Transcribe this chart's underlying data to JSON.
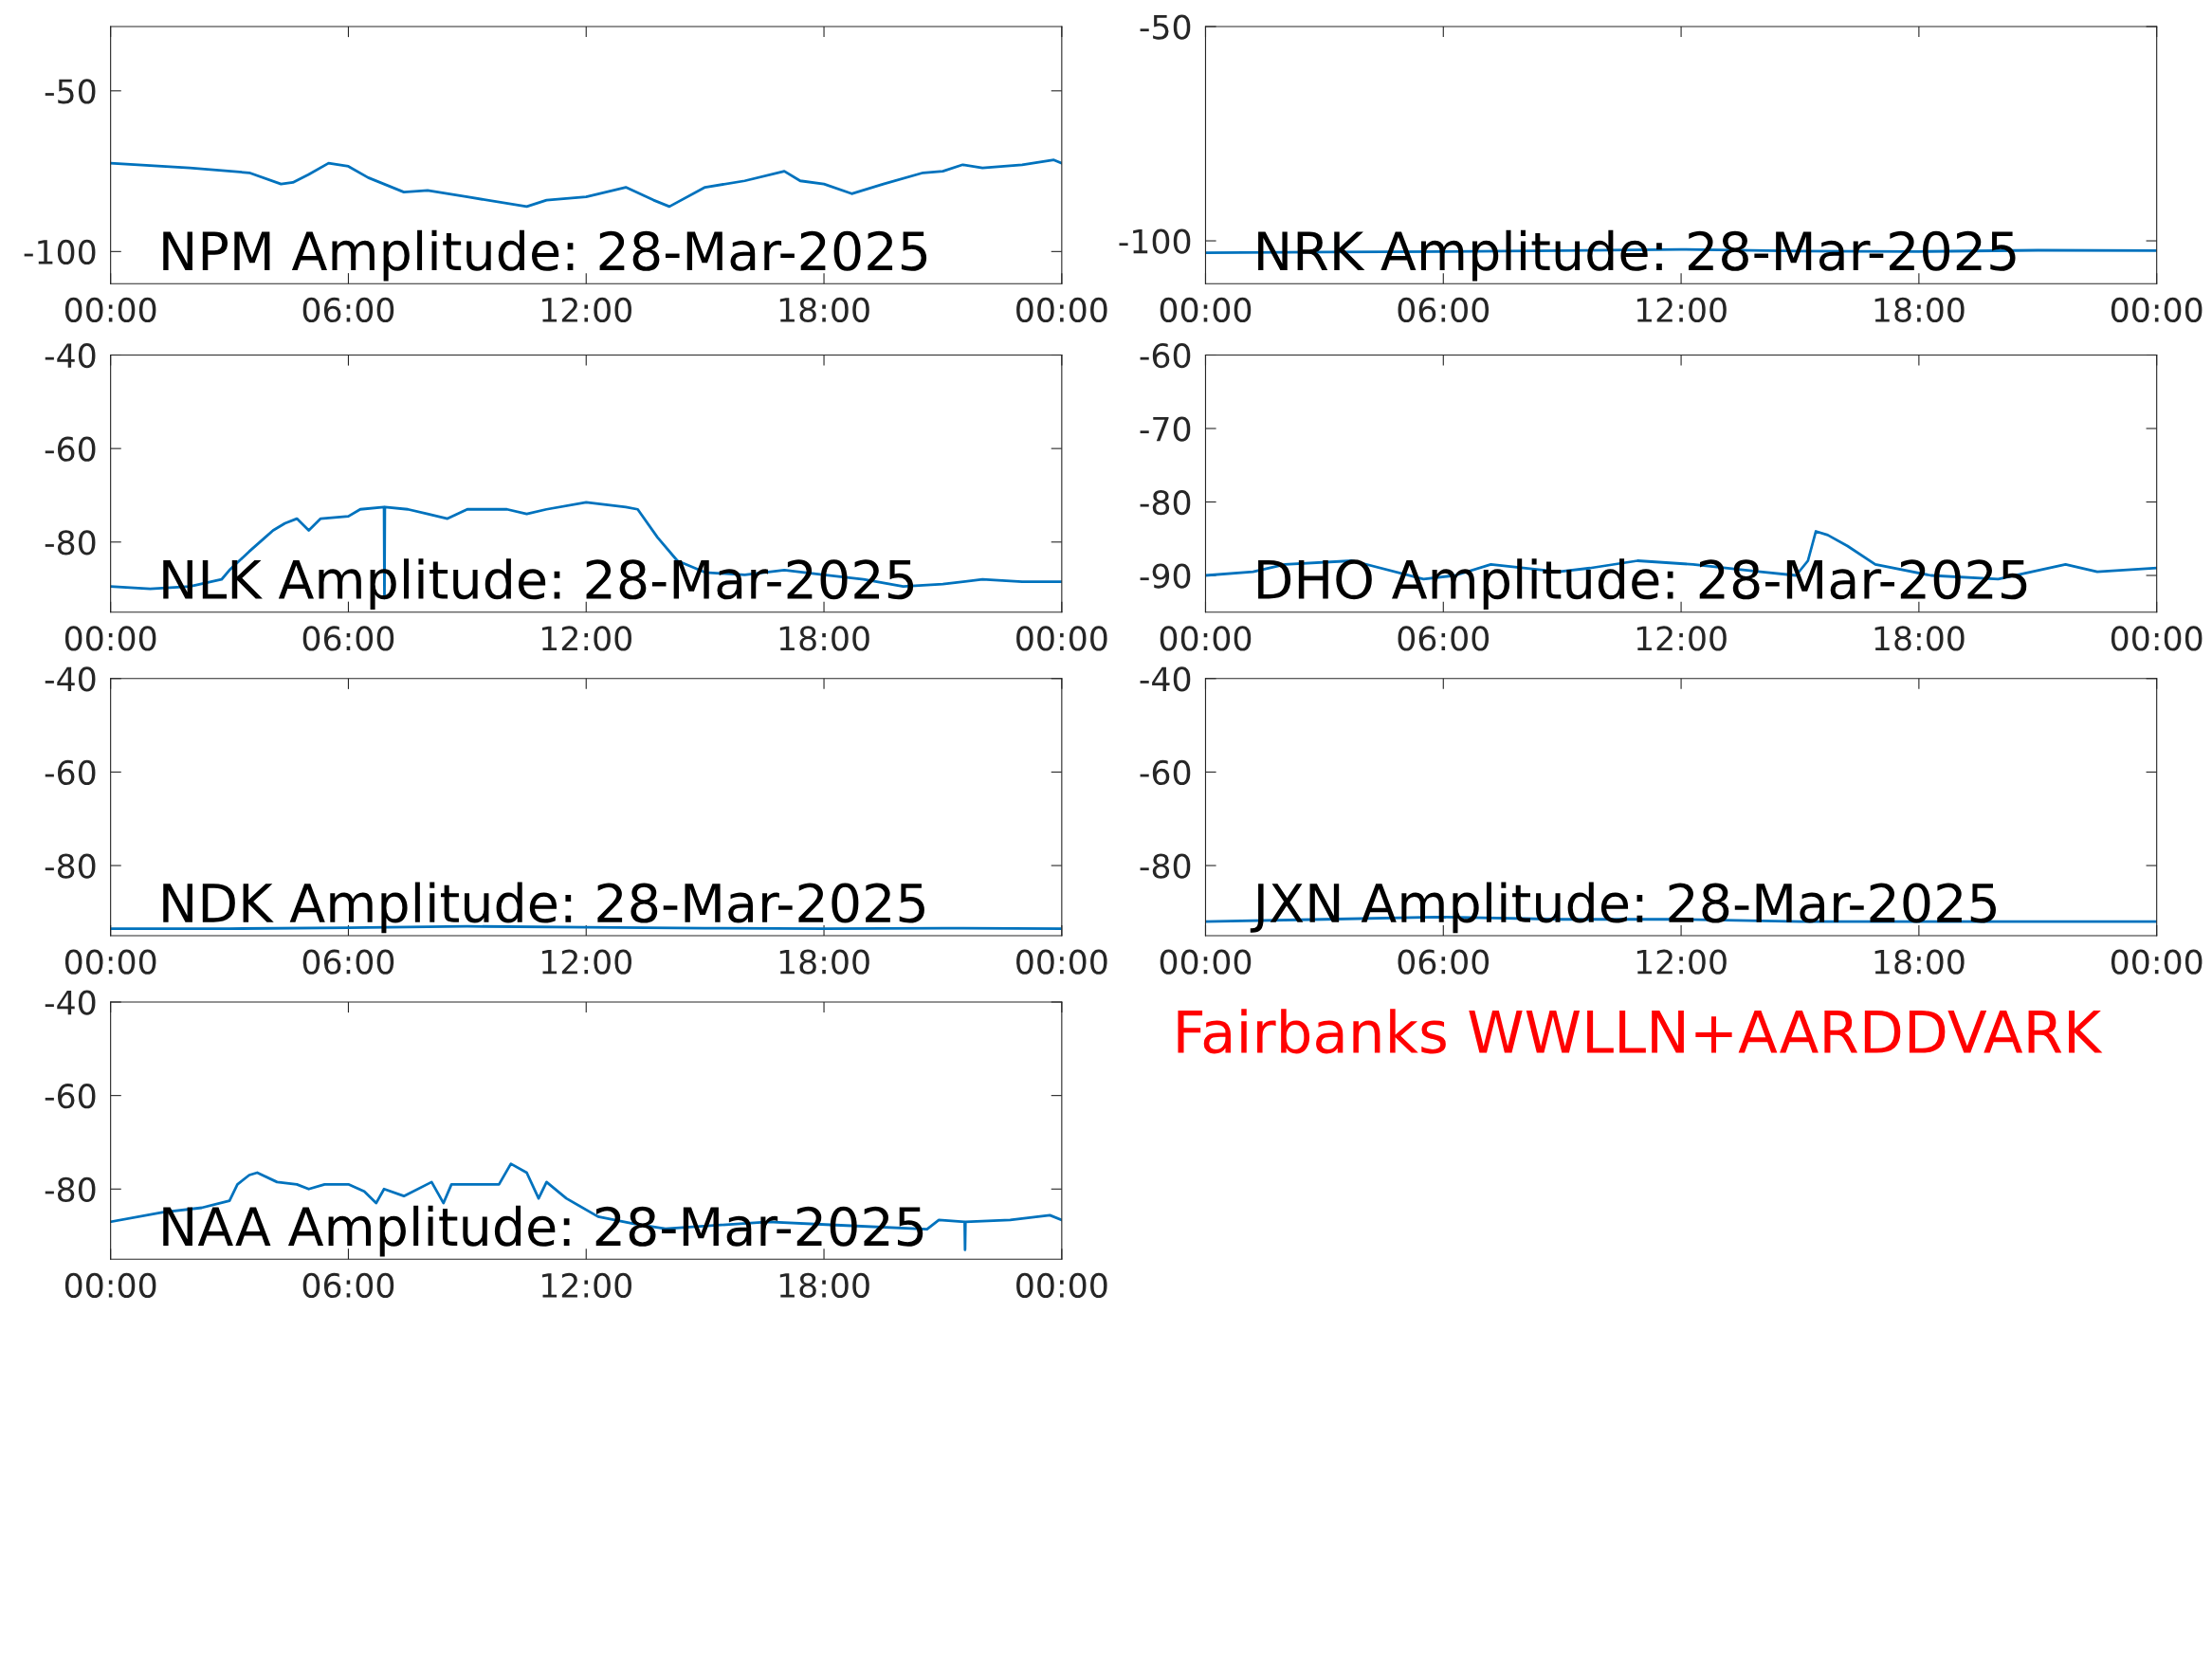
{
  "chart_data": [
    {
      "type": "line",
      "title": "NPM Amplitude: 28-Mar-2025",
      "ylim": [
        -110,
        -30
      ],
      "yticks": [
        -50,
        -100
      ],
      "xlim": [
        0,
        24
      ],
      "xticks": [
        {
          "value": 0,
          "label": "00:00"
        },
        {
          "value": 6,
          "label": "06:00"
        },
        {
          "value": 12,
          "label": "12:00"
        },
        {
          "value": 18,
          "label": "18:00"
        },
        {
          "value": 24,
          "label": "00:00"
        }
      ],
      "grid": false,
      "legend": false,
      "series": [
        {
          "color": "#0072bd",
          "x": [
            0,
            2,
            3.5,
            4.3,
            4.6,
            5,
            5.5,
            6,
            6.5,
            7.4,
            8,
            9,
            10.5,
            11,
            12,
            13,
            13.7,
            14.1,
            15,
            16,
            17,
            17.4,
            18,
            18.7,
            19.5,
            20.5,
            21,
            21.5,
            22,
            23,
            23.8,
            24
          ],
          "values": [
            -72.5,
            -74,
            -75.5,
            -79,
            -78.5,
            -76,
            -72.5,
            -73.5,
            -77,
            -81.5,
            -81,
            -83,
            -86,
            -84,
            -83,
            -80,
            -84,
            -86,
            -80,
            -78,
            -75,
            -78,
            -79,
            -82,
            -79,
            -75.5,
            -75,
            -73,
            -74,
            -73,
            -71.5,
            -72.5
          ]
        }
      ]
    },
    {
      "type": "line",
      "title": "NRK Amplitude: 28-Mar-2025",
      "ylim": [
        -110,
        -50
      ],
      "yticks": [
        -50,
        -100
      ],
      "xlim": [
        0,
        24
      ],
      "xticks": [
        {
          "value": 0,
          "label": "00:00"
        },
        {
          "value": 6,
          "label": "06:00"
        },
        {
          "value": 12,
          "label": "12:00"
        },
        {
          "value": 18,
          "label": "18:00"
        },
        {
          "value": 24,
          "label": "00:00"
        }
      ],
      "grid": false,
      "legend": false,
      "series": [
        {
          "color": "#0072bd",
          "x": [
            0,
            3,
            6,
            9,
            12,
            15,
            18,
            21,
            24
          ],
          "values": [
            -102.8,
            -102.6,
            -102.5,
            -102.3,
            -102,
            -102.4,
            -102.5,
            -102.2,
            -102.3
          ]
        }
      ]
    },
    {
      "type": "line",
      "title": "NLK Amplitude: 28-Mar-2025",
      "ylim": [
        -95,
        -40
      ],
      "yticks": [
        -40,
        -60,
        -80
      ],
      "xlim": [
        0,
        24
      ],
      "xticks": [
        {
          "value": 0,
          "label": "00:00"
        },
        {
          "value": 6,
          "label": "06:00"
        },
        {
          "value": 12,
          "label": "12:00"
        },
        {
          "value": 18,
          "label": "18:00"
        },
        {
          "value": 24,
          "label": "00:00"
        }
      ],
      "grid": false,
      "legend": false,
      "series": [
        {
          "color": "#0072bd",
          "x": [
            0,
            1,
            2,
            2.8,
            3,
            3.5,
            3.9,
            4.1,
            4.4,
            4.7,
            5,
            5.3,
            6,
            6.3,
            6.9,
            6.91,
            6.92,
            7.5,
            8,
            8.5,
            9,
            10,
            10.5,
            11,
            12,
            13,
            13.3,
            13.8,
            14.3,
            15,
            16,
            17,
            18,
            19,
            20,
            21,
            22,
            23,
            24
          ],
          "values": [
            -89.5,
            -90,
            -89.5,
            -88,
            -86,
            -82,
            -79,
            -77.5,
            -76,
            -75,
            -77.5,
            -75,
            -74.5,
            -73,
            -72.5,
            -92,
            -72.5,
            -73,
            -74,
            -75,
            -73,
            -73,
            -74,
            -73,
            -71.5,
            -72.5,
            -73,
            -79,
            -84,
            -86.5,
            -87,
            -86,
            -87,
            -88,
            -89.5,
            -89,
            -88,
            -88.5,
            -88.5
          ]
        }
      ]
    },
    {
      "type": "line",
      "title": "DHO Amplitude: 28-Mar-2025",
      "ylim": [
        -95,
        -60
      ],
      "yticks": [
        -60,
        -70,
        -80,
        -90
      ],
      "xlim": [
        0,
        24
      ],
      "xticks": [
        {
          "value": 0,
          "label": "00:00"
        },
        {
          "value": 6,
          "label": "06:00"
        },
        {
          "value": 12,
          "label": "12:00"
        },
        {
          "value": 18,
          "label": "18:00"
        },
        {
          "value": 24,
          "label": "00:00"
        }
      ],
      "grid": false,
      "legend": false,
      "series": [
        {
          "color": "#0072bd",
          "x": [
            0,
            1.2,
            2,
            3.7,
            5.5,
            6.3,
            7.2,
            8.9,
            9.7,
            10.9,
            12.3,
            14,
            14.9,
            15.2,
            15.4,
            15.7,
            16.2,
            16.9,
            18.3,
            20,
            21.7,
            22.5,
            24
          ],
          "values": [
            -90,
            -89.5,
            -88.5,
            -88,
            -90.5,
            -90,
            -88.5,
            -89.5,
            -89,
            -88,
            -88.5,
            -89.5,
            -90,
            -88,
            -84,
            -84.5,
            -86,
            -88.5,
            -90,
            -90.5,
            -88.5,
            -89.5,
            -89
          ]
        }
      ]
    },
    {
      "type": "line",
      "title": "NDK Amplitude: 28-Mar-2025",
      "ylim": [
        -95,
        -40
      ],
      "yticks": [
        -40,
        -60,
        -80
      ],
      "xlim": [
        0,
        24
      ],
      "xticks": [
        {
          "value": 0,
          "label": "00:00"
        },
        {
          "value": 6,
          "label": "06:00"
        },
        {
          "value": 12,
          "label": "12:00"
        },
        {
          "value": 18,
          "label": "18:00"
        },
        {
          "value": 24,
          "label": "00:00"
        }
      ],
      "grid": false,
      "legend": false,
      "series": [
        {
          "color": "#0072bd",
          "x": [
            0,
            3,
            6,
            9,
            12,
            15,
            18,
            21,
            24
          ],
          "values": [
            -93.5,
            -93.5,
            -93.3,
            -93,
            -93.2,
            -93.4,
            -93.5,
            -93.4,
            -93.5
          ]
        }
      ]
    },
    {
      "type": "line",
      "title": "JXN Amplitude: 28-Mar-2025",
      "ylim": [
        -95,
        -40
      ],
      "yticks": [
        -40,
        -60,
        -80
      ],
      "xlim": [
        0,
        24
      ],
      "xticks": [
        {
          "value": 0,
          "label": "00:00"
        },
        {
          "value": 6,
          "label": "06:00"
        },
        {
          "value": 12,
          "label": "12:00"
        },
        {
          "value": 18,
          "label": "18:00"
        },
        {
          "value": 24,
          "label": "00:00"
        }
      ],
      "grid": false,
      "legend": false,
      "series": [
        {
          "color": "#0072bd",
          "x": [
            0,
            3,
            5.8,
            9,
            12,
            15,
            18,
            21,
            24
          ],
          "values": [
            -92,
            -91.5,
            -91,
            -91.5,
            -91.5,
            -92,
            -92,
            -92,
            -92
          ]
        }
      ]
    },
    {
      "type": "line",
      "title": "NAA Amplitude: 28-Mar-2025",
      "ylim": [
        -95,
        -40
      ],
      "yticks": [
        -40,
        -60,
        -80
      ],
      "xlim": [
        0,
        24
      ],
      "xticks": [
        {
          "value": 0,
          "label": "00:00"
        },
        {
          "value": 6,
          "label": "06:00"
        },
        {
          "value": 12,
          "label": "12:00"
        },
        {
          "value": 18,
          "label": "18:00"
        },
        {
          "value": 24,
          "label": "00:00"
        }
      ],
      "grid": false,
      "legend": false,
      "series": [
        {
          "color": "#0072bd",
          "x": [
            0,
            1.3,
            2.3,
            3,
            3.2,
            3.5,
            3.7,
            4.2,
            4.7,
            5,
            5.4,
            6,
            6.4,
            6.7,
            6.9,
            7.4,
            8.1,
            8.4,
            8.6,
            9.8,
            10.1,
            10.5,
            10.8,
            11,
            11.5,
            12.3,
            13.2,
            14,
            16.6,
            18.3,
            20.6,
            20.9,
            21.55,
            21.56,
            21.57,
            22.7,
            23.7,
            24
          ],
          "values": [
            -87,
            -85,
            -84,
            -82.5,
            -79,
            -77,
            -76.5,
            -78.5,
            -79,
            -80,
            -79,
            -79,
            -80.5,
            -83,
            -80,
            -81.5,
            -78.5,
            -83,
            -79,
            -79,
            -74.6,
            -76.5,
            -82,
            -78.5,
            -82,
            -85.9,
            -87.4,
            -88.5,
            -87,
            -87.7,
            -88.6,
            -86.6,
            -87,
            -93,
            -87,
            -86.6,
            -85.6,
            -86.6
          ]
        }
      ]
    },
    {
      "type": "other",
      "annotations": [
        "Fairbanks WWLLN+AARDDVARK"
      ],
      "color": "#ff0000"
    }
  ]
}
